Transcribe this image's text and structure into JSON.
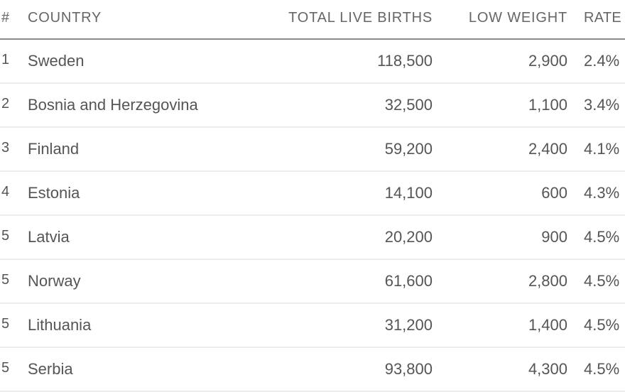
{
  "table": {
    "headers": {
      "rank": "#",
      "country": "COUNTRY",
      "births": "TOTAL LIVE BIRTHS",
      "low": "LOW WEIGHT",
      "rate": "RATE"
    },
    "rows": [
      {
        "rank": "1",
        "country": "Sweden",
        "births": "118,500",
        "low": "2,900",
        "rate": "2.4%"
      },
      {
        "rank": "2",
        "country": "Bosnia and Herzegovina",
        "births": "32,500",
        "low": "1,100",
        "rate": "3.4%"
      },
      {
        "rank": "3",
        "country": "Finland",
        "births": "59,200",
        "low": "2,400",
        "rate": "4.1%"
      },
      {
        "rank": "4",
        "country": "Estonia",
        "births": "14,100",
        "low": "600",
        "rate": "4.3%"
      },
      {
        "rank": "5",
        "country": "Latvia",
        "births": "20,200",
        "low": "900",
        "rate": "4.5%"
      },
      {
        "rank": "5",
        "country": "Norway",
        "births": "61,600",
        "low": "2,800",
        "rate": "4.5%"
      },
      {
        "rank": "5",
        "country": "Lithuania",
        "births": "31,200",
        "low": "1,400",
        "rate": "4.5%"
      },
      {
        "rank": "5",
        "country": "Serbia",
        "births": "93,800",
        "low": "4,300",
        "rate": "4.5%"
      }
    ]
  }
}
